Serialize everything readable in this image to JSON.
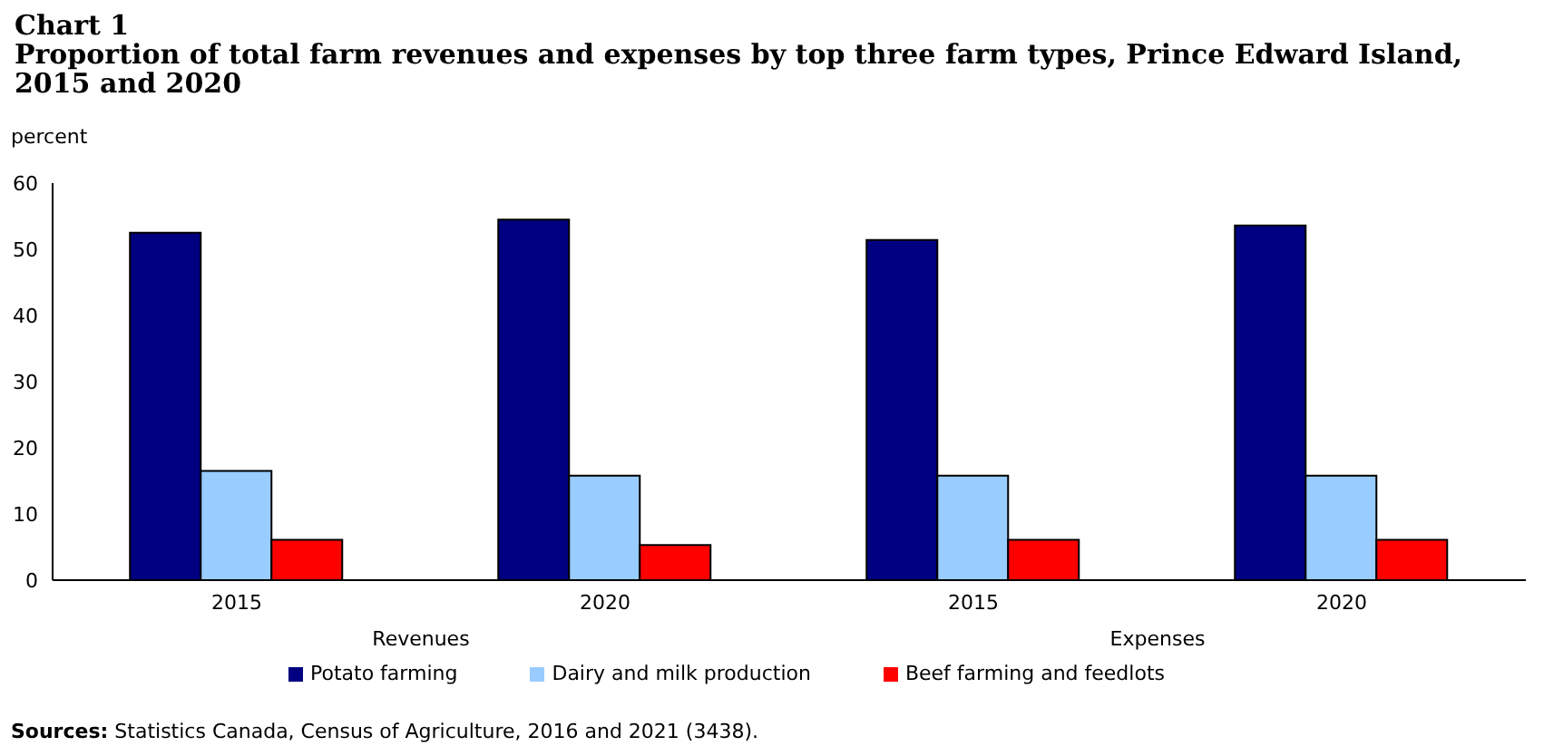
{
  "chart_data": {
    "type": "bar",
    "title": "Chart 1",
    "subtitle": "Proportion of total farm revenues and expenses by top three farm types, Prince Edward Island, 2015 and 2020",
    "ylabel": "percent",
    "categories": [
      "2015",
      "2020",
      "2015",
      "2020"
    ],
    "series": [
      {
        "name": "Potato farming",
        "color": "#000080",
        "values": [
          52.5,
          54.5,
          51.4,
          53.6
        ]
      },
      {
        "name": "Dairy and milk production",
        "color": "#99ccff",
        "values": [
          16.5,
          15.8,
          15.8,
          15.8
        ]
      },
      {
        "name": "Beef farming and feedlots",
        "color": "#ff0000",
        "values": [
          6.1,
          5.3,
          6.1,
          6.1
        ]
      }
    ],
    "ylim": [
      0,
      60
    ],
    "yticks": [
      0,
      10,
      20,
      30,
      40,
      50,
      60
    ],
    "grid": false,
    "legend": "bottom",
    "annotations": [
      "Revenues",
      "Expenses",
      "Sources: Statistics Canada, Census of Agriculture, 2016 and 2021 (3438)."
    ]
  }
}
